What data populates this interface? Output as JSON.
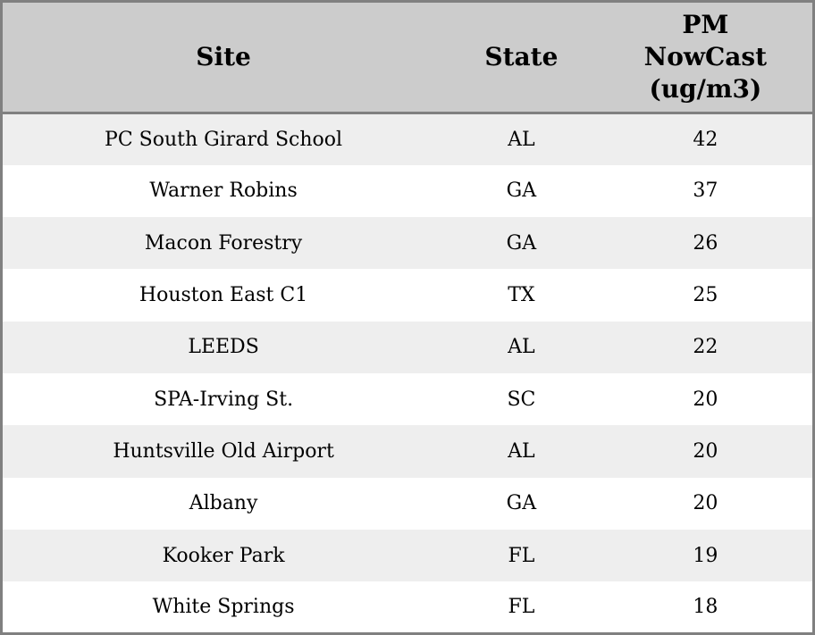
{
  "header": {
    "site_label": "Site",
    "state_label": "State",
    "pm_label": "PM\nNowCast\n(ug/m3)"
  },
  "colors": {
    "header_bg": "#cccccc",
    "row_stripe": "#eeeeee",
    "row_plain": "#ffffff",
    "border": "#808080",
    "text": "#000000"
  },
  "chart_data": {
    "type": "table",
    "title": "",
    "columns": [
      "Site",
      "State",
      "PM NowCast (ug/m3)"
    ],
    "rows": [
      [
        "PC South Girard School",
        "AL",
        42
      ],
      [
        "Warner Robins",
        "GA",
        37
      ],
      [
        "Macon Forestry",
        "GA",
        26
      ],
      [
        "Houston East C1",
        "TX",
        25
      ],
      [
        "LEEDS",
        "AL",
        22
      ],
      [
        "SPA-Irving St.",
        "SC",
        20
      ],
      [
        "Huntsville Old Airport",
        "AL",
        20
      ],
      [
        "Albany",
        "GA",
        20
      ],
      [
        "Kooker Park",
        "FL",
        19
      ],
      [
        "White Springs",
        "FL",
        18
      ]
    ],
    "layout": {
      "header_background": "#cccccc",
      "striped_rows": true,
      "stripe_color": "#eeeeee",
      "frame_color": "#808080"
    }
  }
}
